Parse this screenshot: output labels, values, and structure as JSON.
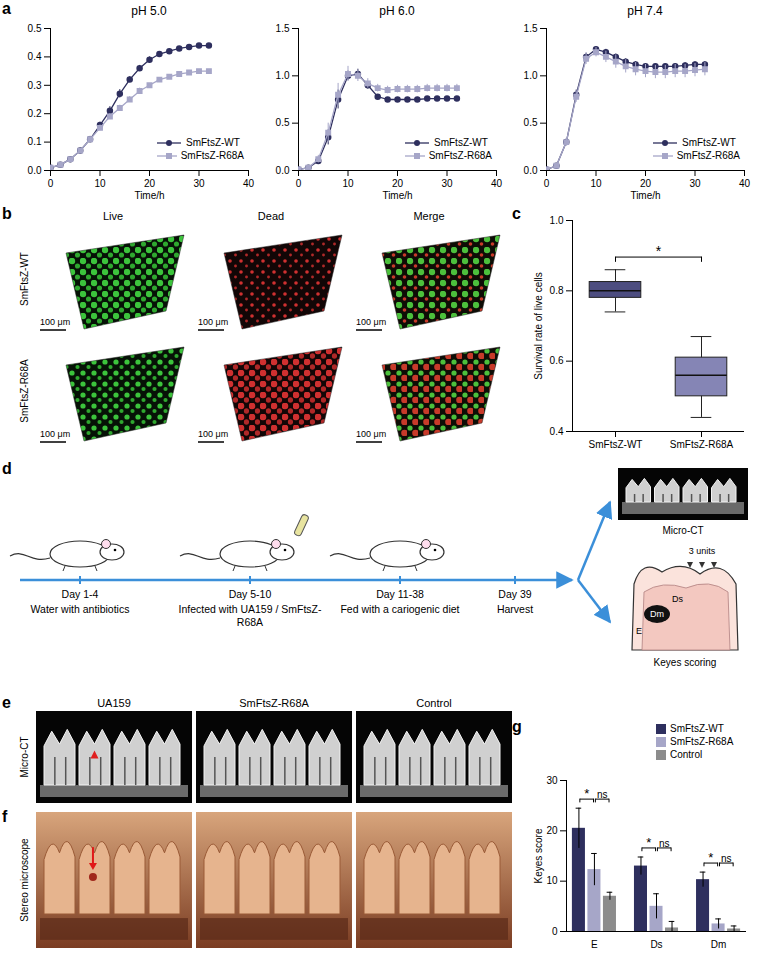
{
  "chart_data": [
    {
      "type": "line",
      "panel": "a",
      "title": "pH 5.0",
      "x_label": "Time/h",
      "x": [
        0,
        2,
        4,
        6,
        8,
        10,
        12,
        14,
        16,
        18,
        20,
        22,
        24,
        26,
        28,
        30,
        32
      ],
      "xlim": [
        0,
        40
      ],
      "xticks": [
        0,
        10,
        20,
        30,
        40
      ],
      "ylim": [
        0,
        0.5
      ],
      "yticks": [
        {
          "value": 0,
          "label": "0.0"
        },
        0.1,
        0.2,
        0.3,
        0.4,
        0.5
      ],
      "legend": "bottom-right",
      "series": [
        {
          "name": "SmFtsZ-WT",
          "color": "#2e2f5e",
          "marker": "circle",
          "values": [
            0.01,
            0.02,
            0.04,
            0.07,
            0.11,
            0.16,
            0.21,
            0.27,
            0.32,
            0.36,
            0.39,
            0.41,
            0.42,
            0.43,
            0.435,
            0.44,
            0.44
          ],
          "errors": [
            0,
            0,
            0.005,
            0.005,
            0.01,
            0.01,
            0.015,
            0.015,
            0.01,
            0.01,
            0.01,
            0.005,
            0.005,
            0.005,
            0.005,
            0.005,
            0.005
          ]
        },
        {
          "name": "SmFtsZ-R68A",
          "color": "#a6a6c8",
          "marker": "square",
          "values": [
            0.01,
            0.02,
            0.04,
            0.07,
            0.11,
            0.15,
            0.19,
            0.22,
            0.25,
            0.28,
            0.3,
            0.32,
            0.33,
            0.34,
            0.345,
            0.35,
            0.35
          ],
          "errors": [
            0,
            0,
            0.005,
            0.005,
            0.01,
            0.01,
            0.01,
            0.01,
            0.01,
            0.01,
            0.005,
            0.005,
            0.005,
            0.005,
            0.005,
            0.005,
            0.005
          ]
        }
      ]
    },
    {
      "type": "line",
      "title": "pH 6.0",
      "x_label": "Time/h",
      "x": [
        0,
        2,
        4,
        6,
        8,
        10,
        12,
        14,
        16,
        18,
        20,
        22,
        24,
        26,
        28,
        30,
        32
      ],
      "xlim": [
        0,
        40
      ],
      "xticks": [
        0,
        10,
        20,
        30,
        40
      ],
      "ylim": [
        0,
        1.5
      ],
      "yticks": [
        {
          "value": 0,
          "label": "0.0"
        },
        0.5,
        {
          "value": 1,
          "label": "1.0"
        },
        1.5
      ],
      "legend": "bottom-right",
      "series": [
        {
          "name": "SmFtsZ-WT",
          "color": "#2e2f5e",
          "marker": "circle",
          "values": [
            0.01,
            0.03,
            0.1,
            0.35,
            0.75,
            1.0,
            1.02,
            0.9,
            0.78,
            0.75,
            0.75,
            0.75,
            0.75,
            0.76,
            0.76,
            0.76,
            0.76
          ],
          "errors": [
            0,
            0.01,
            0.03,
            0.08,
            0.1,
            0.05,
            0.05,
            0.04,
            0.02,
            0.02,
            0.02,
            0.01,
            0.01,
            0.01,
            0.01,
            0.01,
            0.01
          ]
        },
        {
          "name": "SmFtsZ-R68A",
          "color": "#a6a6c8",
          "marker": "square",
          "values": [
            0.01,
            0.03,
            0.12,
            0.4,
            0.8,
            1.02,
            1.0,
            0.92,
            0.87,
            0.85,
            0.86,
            0.86,
            0.86,
            0.87,
            0.87,
            0.87,
            0.87
          ],
          "errors": [
            0,
            0.01,
            0.04,
            0.1,
            0.12,
            0.08,
            0.06,
            0.05,
            0.04,
            0.04,
            0.04,
            0.04,
            0.04,
            0.04,
            0.04,
            0.04,
            0.04
          ]
        }
      ]
    },
    {
      "type": "line",
      "title": "pH 7.4",
      "x_label": "Time/h",
      "x": [
        0,
        2,
        4,
        6,
        8,
        10,
        12,
        14,
        16,
        18,
        20,
        22,
        24,
        26,
        28,
        30,
        32
      ],
      "xlim": [
        0,
        40
      ],
      "xticks": [
        0,
        10,
        20,
        30,
        40
      ],
      "ylim": [
        0,
        1.5
      ],
      "yticks": [
        {
          "value": 0,
          "label": "0.0"
        },
        0.5,
        {
          "value": 1,
          "label": "1.0"
        },
        1.5
      ],
      "legend": "bottom-right",
      "series": [
        {
          "name": "SmFtsZ-WT",
          "color": "#2e2f5e",
          "marker": "circle",
          "values": [
            0.01,
            0.05,
            0.3,
            0.8,
            1.2,
            1.28,
            1.25,
            1.2,
            1.15,
            1.12,
            1.1,
            1.1,
            1.1,
            1.1,
            1.11,
            1.12,
            1.12
          ],
          "errors": [
            0,
            0.01,
            0.03,
            0.05,
            0.04,
            0.03,
            0.03,
            0.03,
            0.03,
            0.03,
            0.03,
            0.03,
            0.03,
            0.03,
            0.03,
            0.03,
            0.03
          ]
        },
        {
          "name": "SmFtsZ-R68A",
          "color": "#a6a6c8",
          "marker": "square",
          "values": [
            0.01,
            0.05,
            0.3,
            0.78,
            1.18,
            1.25,
            1.2,
            1.15,
            1.1,
            1.07,
            1.05,
            1.04,
            1.04,
            1.05,
            1.05,
            1.06,
            1.07
          ],
          "errors": [
            0,
            0.01,
            0.04,
            0.06,
            0.06,
            0.05,
            0.06,
            0.07,
            0.07,
            0.07,
            0.07,
            0.07,
            0.07,
            0.07,
            0.07,
            0.07,
            0.07
          ]
        }
      ]
    },
    {
      "type": "box",
      "panel": "c",
      "categories": [
        "SmFtsZ-WT",
        "SmFtsZ-R68A"
      ],
      "colors": [
        "#4d4d80",
        "#8585b5"
      ],
      "stats": [
        {
          "min": 0.74,
          "q1": 0.78,
          "median": 0.8,
          "q3": 0.825,
          "max": 0.86
        },
        {
          "min": 0.44,
          "q1": 0.5,
          "median": 0.56,
          "q3": 0.61,
          "max": 0.67
        }
      ],
      "y_label": "Survival rate of live cells",
      "ylim": [
        0.4,
        1.0
      ],
      "yticks": [
        0.4,
        0.6,
        0.8,
        {
          "value": 1,
          "label": "1.0"
        }
      ],
      "annotations": [
        {
          "from": "SmFtsZ-WT",
          "to": "SmFtsZ-R68A",
          "text": "*"
        }
      ]
    },
    {
      "type": "bar",
      "panel": "g",
      "categories": [
        "E",
        "Ds",
        "Dm"
      ],
      "y_label": "Keyes score",
      "ylim": [
        0,
        30
      ],
      "yticks": [
        0,
        10,
        20,
        30
      ],
      "legend": "top-right",
      "series": [
        {
          "name": "SmFtsZ-WT",
          "color": "#2e2f5e",
          "values": [
            20.5,
            13,
            10.3
          ],
          "errors": [
            4,
            1.8,
            1.5
          ]
        },
        {
          "name": "SmFtsZ-R68A",
          "color": "#a6a6c8",
          "values": [
            12.3,
            5,
            1.5
          ],
          "errors": [
            3.2,
            2.5,
            1
          ]
        },
        {
          "name": "Control",
          "color": "#8c8c8c",
          "values": [
            7,
            0.7,
            0.5
          ],
          "errors": [
            0.8,
            1.3,
            0.6
          ]
        }
      ],
      "annotations": [
        {
          "category": "E",
          "from": "SmFtsZ-WT",
          "to": "SmFtsZ-R68A",
          "text": "*"
        },
        {
          "category": "E",
          "from": "SmFtsZ-R68A",
          "to": "Control",
          "text": "ns"
        },
        {
          "category": "Ds",
          "from": "SmFtsZ-WT",
          "to": "SmFtsZ-R68A",
          "text": "*"
        },
        {
          "category": "Ds",
          "from": "SmFtsZ-R68A",
          "to": "Control",
          "text": "ns"
        },
        {
          "category": "Dm",
          "from": "SmFtsZ-WT",
          "to": "SmFtsZ-R68A",
          "text": "*"
        },
        {
          "category": "Dm",
          "from": "SmFtsZ-R68A",
          "to": "Control",
          "text": "ns"
        }
      ]
    }
  ],
  "panel_b": {
    "label": "b",
    "columns": [
      "Live",
      "Dead",
      "Merge"
    ],
    "rows": [
      "SmFtsZ-WT",
      "SmFtsZ-R68A"
    ],
    "scale_bar": "100 μm"
  },
  "panel_d": {
    "label": "d",
    "steps": [
      {
        "day": "Day 1-4",
        "text": "Water with antibiotics"
      },
      {
        "day": "Day 5-10",
        "text": "Infected with UA159 / SmFtsZ-R68A"
      },
      {
        "day": "Day 11-38",
        "text": "Fed with a cariogenic diet"
      },
      {
        "day": "Day 39",
        "text": "Harvest"
      }
    ],
    "outputs": [
      "Micro-CT",
      "Keyes scoring"
    ],
    "tooth_labels": {
      "enamel": "E",
      "slight_dentin": "Ds",
      "moderate_dentin": "Dm",
      "units": "3 units"
    }
  },
  "panel_e": {
    "label": "e",
    "row": "Micro-CT",
    "columns": [
      "UA159",
      "SmFtsZ-R68A",
      "Control"
    ]
  },
  "panel_f": {
    "label": "f",
    "row": "Stereo microscope"
  }
}
